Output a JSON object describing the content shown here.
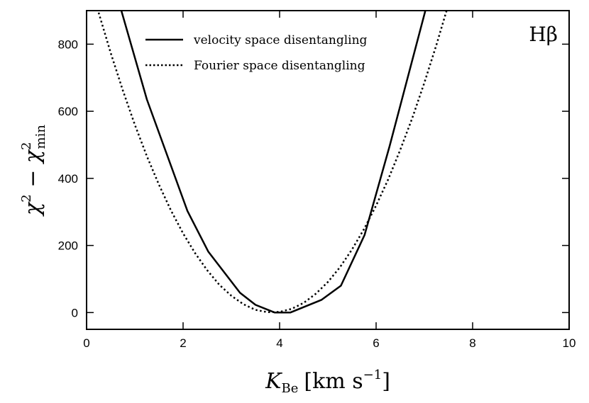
{
  "chart_data": {
    "type": "line",
    "title": "",
    "annotation": "Hβ",
    "xlabel": {
      "main": "K",
      "sub": "Be",
      "units": "[km s",
      "exp": "−1",
      "close": "]"
    },
    "ylabel": {
      "main": "χ",
      "sup1": "2",
      "minus": " − χ",
      "sup2": "2",
      "sub": "min"
    },
    "xlim": [
      0,
      10
    ],
    "ylim": [
      -50,
      900
    ],
    "xticks": [
      0,
      2,
      4,
      6,
      8,
      10
    ],
    "yticks": [
      0,
      200,
      400,
      600,
      800
    ],
    "xtick_labels": [
      "0",
      "2",
      "4",
      "6",
      "8",
      "10"
    ],
    "ytick_labels": [
      "0",
      "200",
      "400",
      "600",
      "800"
    ],
    "grid": false,
    "legend_position": "top-left",
    "series": [
      {
        "name": "velocity space disentangling",
        "style": "solid",
        "x": [
          0.72,
          1.25,
          2.09,
          2.52,
          3.18,
          3.5,
          3.9,
          4.22,
          4.87,
          5.27,
          5.76,
          6.28,
          7.02
        ],
        "y": [
          900,
          635,
          303,
          182,
          59,
          23,
          0,
          0,
          38,
          80,
          231,
          496,
          900
        ]
      },
      {
        "name": "Fourier space disentangling",
        "style": "dotted",
        "x": [
          0.25,
          0.5,
          0.75,
          1.0,
          1.25,
          1.5,
          1.75,
          2.0,
          2.25,
          2.5,
          2.75,
          3.0,
          3.25,
          3.5,
          3.75,
          4.0,
          4.25,
          4.5,
          4.75,
          5.0,
          5.25,
          5.5,
          5.75,
          6.0,
          6.25,
          6.5,
          6.75,
          7.0,
          7.25,
          7.5
        ],
        "y": [
          894,
          774,
          663,
          560,
          466,
          381,
          304,
          236,
          177,
          126,
          83,
          50,
          25,
          8,
          1,
          2,
          11,
          29,
          56,
          91,
          135,
          188,
          249,
          319,
          397,
          485,
          580,
          685,
          798,
          919
        ]
      }
    ]
  }
}
